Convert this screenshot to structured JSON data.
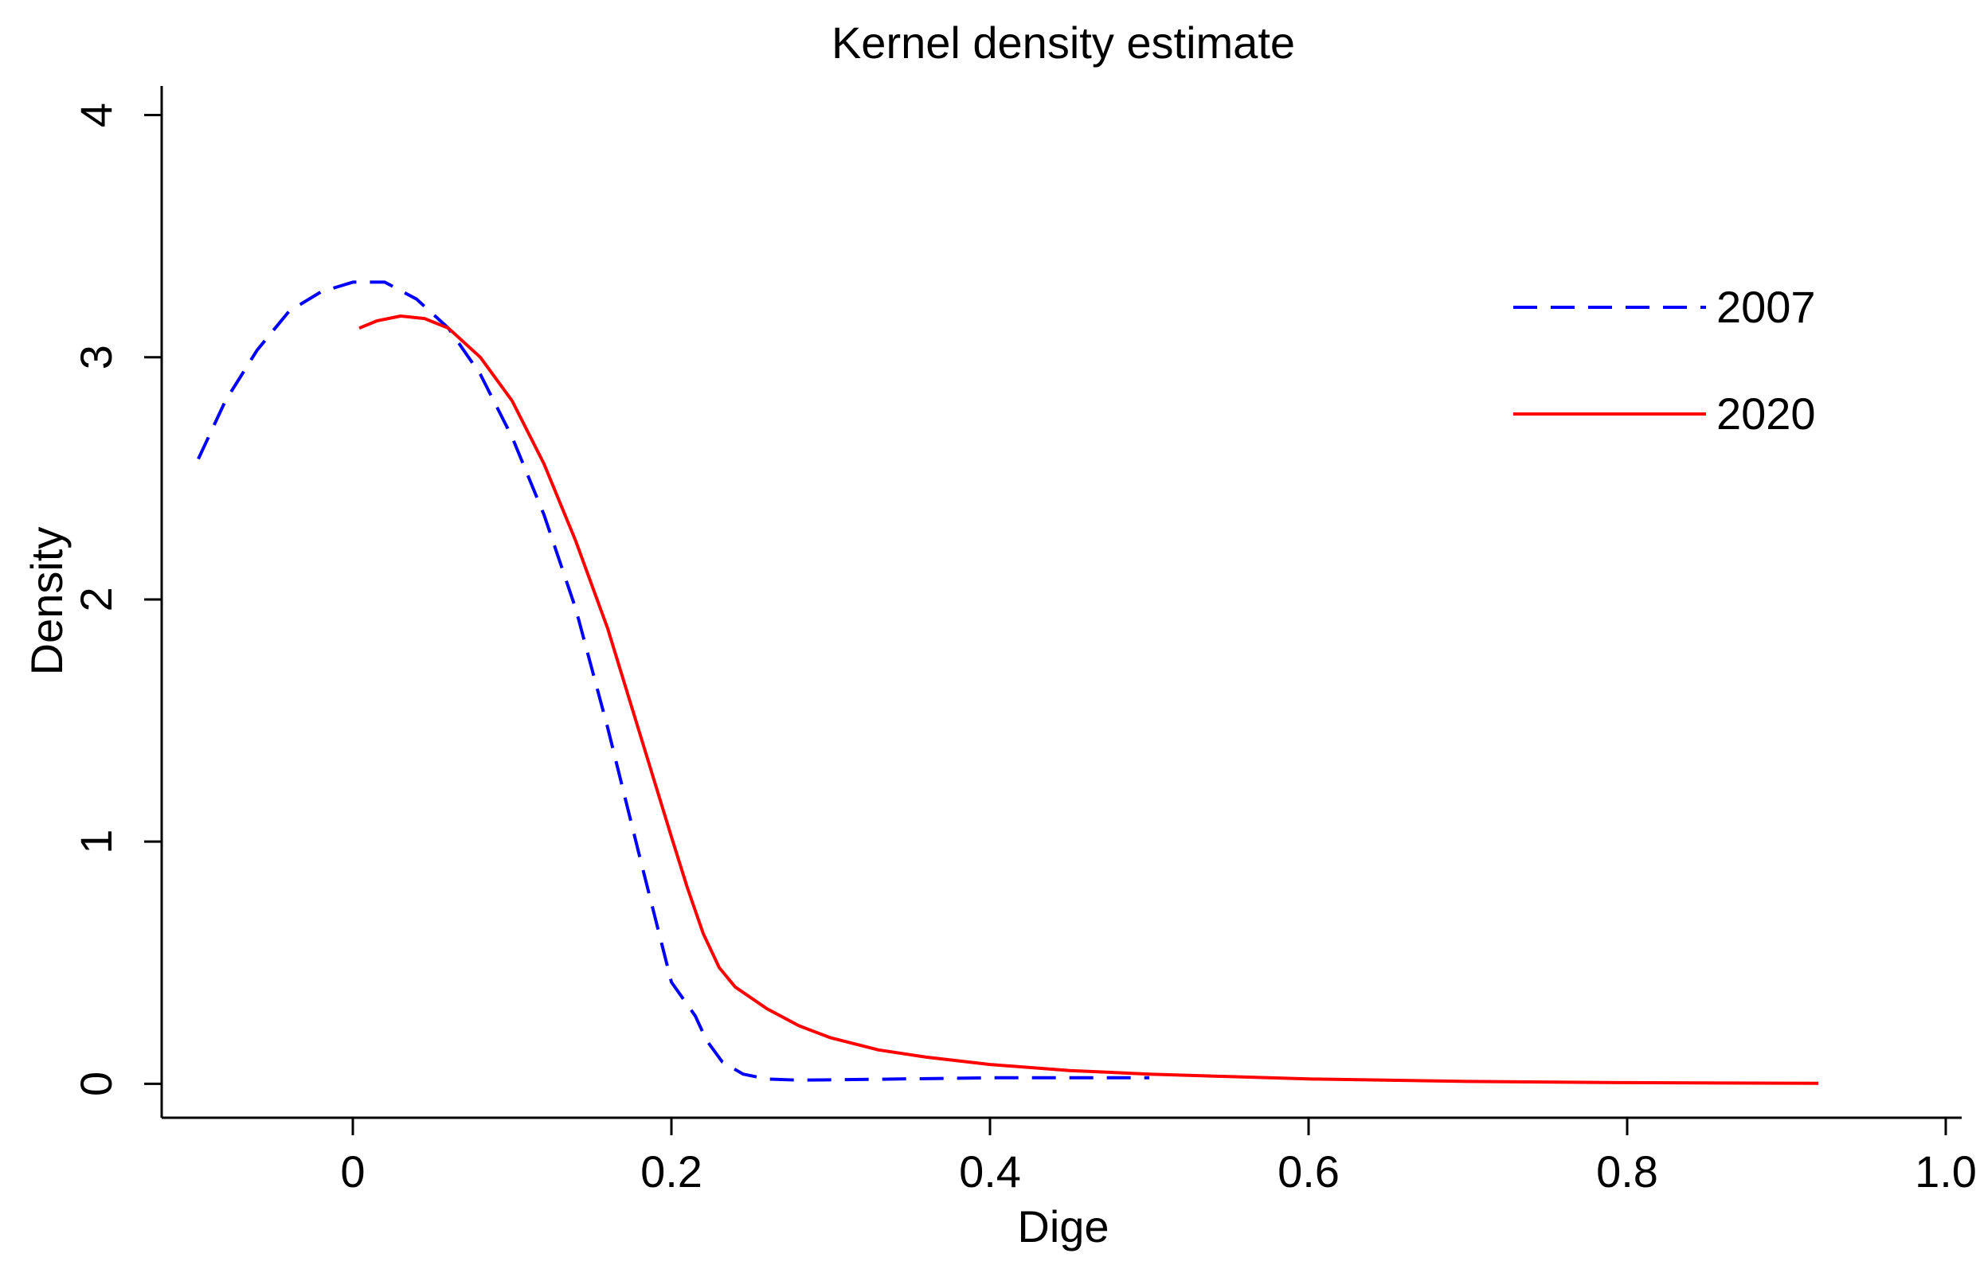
{
  "chart_data": {
    "type": "line",
    "title": "Kernel density estimate",
    "xlabel": "Dige",
    "ylabel": "Density",
    "xlim": [
      -0.12,
      1.01
    ],
    "ylim": [
      -0.14,
      4.12
    ],
    "grid": false,
    "legend_position": "top-right",
    "x_ticks": [
      {
        "value": 0,
        "label": "0"
      },
      {
        "value": 0.2,
        "label": "0.2"
      },
      {
        "value": 0.4,
        "label": "0.4"
      },
      {
        "value": 0.6,
        "label": "0.6"
      },
      {
        "value": 0.8,
        "label": "0.8"
      },
      {
        "value": 1.0,
        "label": "1.0"
      }
    ],
    "y_ticks": [
      {
        "value": 0,
        "label": "0"
      },
      {
        "value": 1,
        "label": "1"
      },
      {
        "value": 2,
        "label": "2"
      },
      {
        "value": 3,
        "label": "3"
      },
      {
        "value": 4,
        "label": "4"
      }
    ],
    "series": [
      {
        "name": "2007",
        "color": "#0000ff",
        "style": "dashed",
        "x": [
          -0.097,
          -0.08,
          -0.06,
          -0.04,
          -0.02,
          0.0,
          0.02,
          0.04,
          0.06,
          0.08,
          0.1,
          0.12,
          0.14,
          0.16,
          0.18,
          0.2,
          0.215,
          0.222,
          0.232,
          0.245,
          0.26,
          0.28,
          0.32,
          0.4,
          0.5
        ],
        "values": [
          2.58,
          2.82,
          3.03,
          3.19,
          3.27,
          3.31,
          3.31,
          3.24,
          3.12,
          2.93,
          2.67,
          2.35,
          1.96,
          1.47,
          0.94,
          0.42,
          0.28,
          0.18,
          0.09,
          0.04,
          0.02,
          0.015,
          0.018,
          0.025,
          0.025
        ]
      },
      {
        "name": "2020",
        "color": "#ff0000",
        "style": "solid",
        "x": [
          0.004,
          0.015,
          0.03,
          0.045,
          0.06,
          0.08,
          0.1,
          0.12,
          0.14,
          0.16,
          0.18,
          0.2,
          0.21,
          0.22,
          0.23,
          0.24,
          0.26,
          0.28,
          0.3,
          0.33,
          0.36,
          0.4,
          0.45,
          0.5,
          0.55,
          0.6,
          0.7,
          0.8,
          0.92
        ],
        "values": [
          3.12,
          3.15,
          3.17,
          3.16,
          3.12,
          3.0,
          2.82,
          2.56,
          2.24,
          1.88,
          1.45,
          1.02,
          0.81,
          0.62,
          0.48,
          0.4,
          0.31,
          0.24,
          0.19,
          0.14,
          0.11,
          0.08,
          0.055,
          0.04,
          0.03,
          0.02,
          0.01,
          0.005,
          0.002
        ]
      }
    ]
  }
}
